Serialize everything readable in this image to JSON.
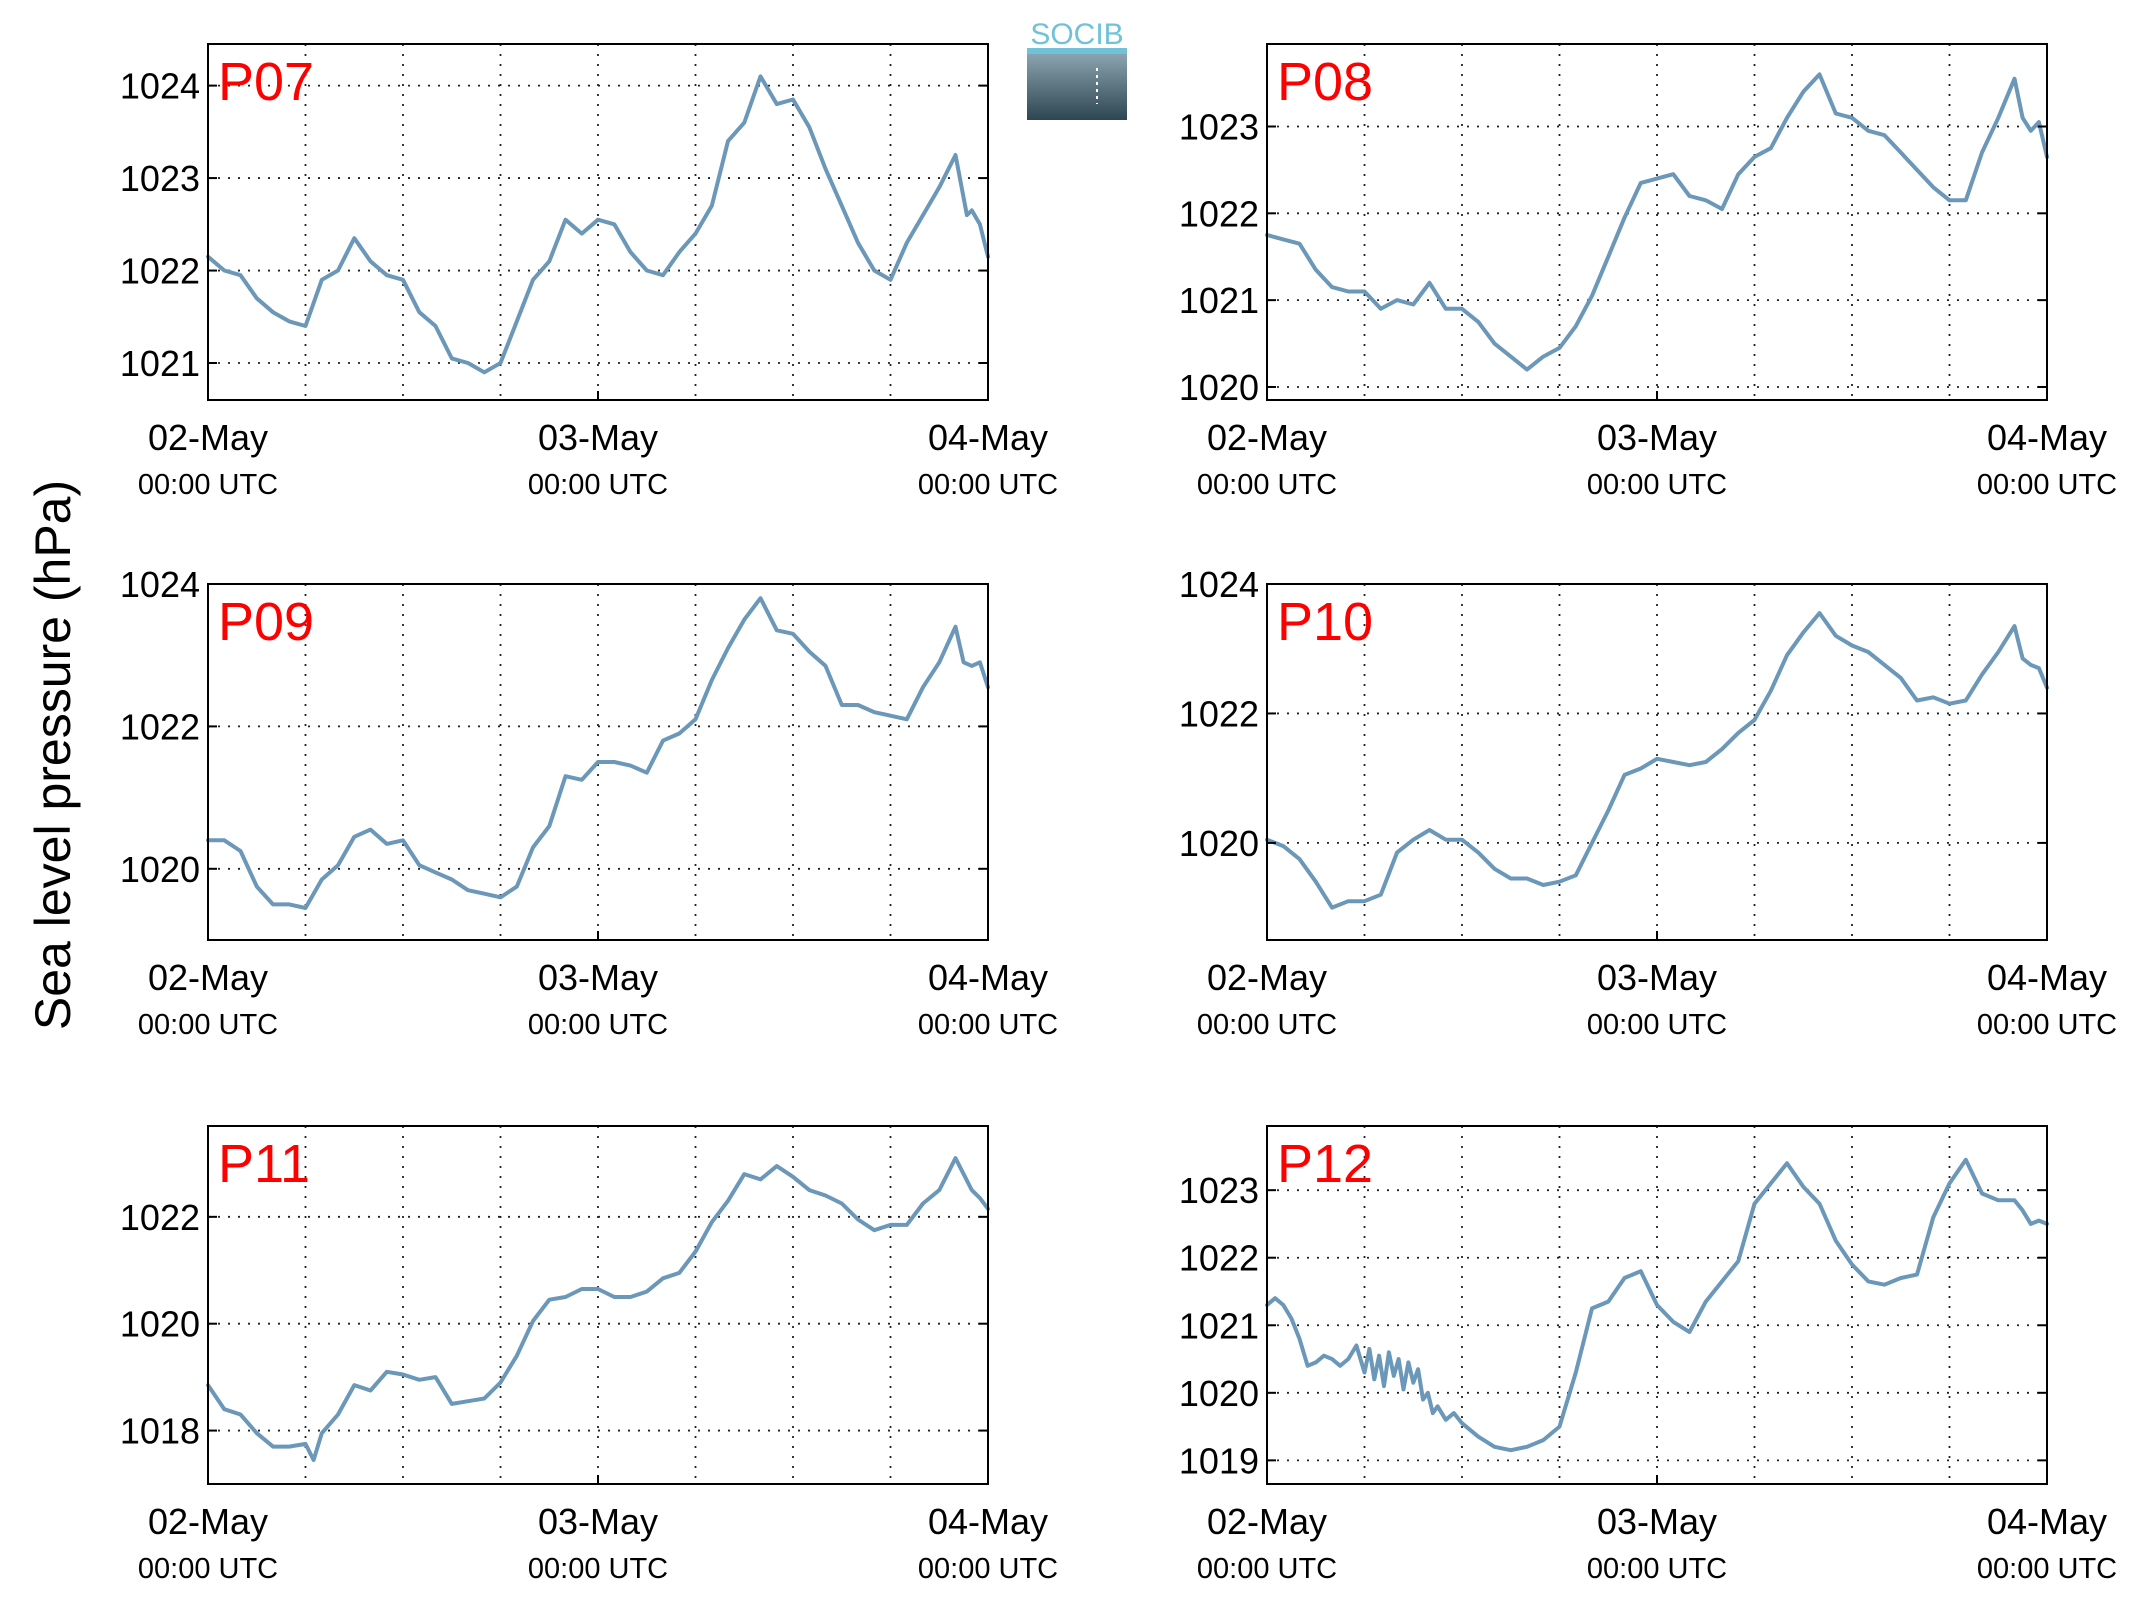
{
  "figure": {
    "ylabel": "Sea level pressure (hPa)",
    "logo_text": "SOCIB",
    "line_color": "#6b97b8",
    "panel_label_color": "#ff0000",
    "grid": true,
    "grid_style": "dotted"
  },
  "chart_data": [
    {
      "type": "line",
      "panel": "P07",
      "xlim": [
        0,
        48
      ],
      "ylim": [
        1020.6,
        1024.45
      ],
      "yticks": [
        1021,
        1022,
        1023,
        1024
      ],
      "xticks": [
        {
          "x": 0,
          "date": "02-May",
          "time": "00:00 UTC"
        },
        {
          "x": 24,
          "date": "03-May",
          "time": "00:00 UTC"
        },
        {
          "x": 48,
          "date": "04-May",
          "time": "00:00 UTC"
        }
      ],
      "x_minor_grid": [
        6,
        12,
        18,
        30,
        36,
        42
      ],
      "x": [
        0,
        1,
        2,
        3,
        4,
        5,
        6,
        7,
        8,
        9,
        10,
        11,
        12,
        13,
        14,
        15,
        16,
        17,
        18,
        19,
        20,
        21,
        22,
        23,
        24,
        25,
        26,
        27,
        28,
        29,
        30,
        31,
        32,
        33,
        34,
        35,
        36,
        37,
        38,
        39,
        40,
        41,
        42,
        43,
        44,
        45,
        46,
        46.7,
        47,
        47.5,
        48
      ],
      "values": [
        1022.15,
        1022.0,
        1021.95,
        1021.7,
        1021.55,
        1021.45,
        1021.4,
        1021.9,
        1022.0,
        1022.35,
        1022.1,
        1021.95,
        1021.9,
        1021.55,
        1021.4,
        1021.05,
        1021.0,
        1020.9,
        1021.0,
        1021.45,
        1021.9,
        1022.1,
        1022.55,
        1022.4,
        1022.55,
        1022.5,
        1022.2,
        1022.0,
        1021.95,
        1022.2,
        1022.4,
        1022.7,
        1023.4,
        1023.6,
        1024.1,
        1023.8,
        1023.85,
        1023.55,
        1023.1,
        1022.7,
        1022.3,
        1022.0,
        1021.9,
        1022.3,
        1022.6,
        1022.9,
        1023.25,
        1022.6,
        1022.65,
        1022.5,
        1022.15
      ],
      "xlabel": "",
      "ylabel": ""
    },
    {
      "type": "line",
      "panel": "P08",
      "xlim": [
        0,
        48
      ],
      "ylim": [
        1019.85,
        1023.95
      ],
      "yticks": [
        1020,
        1021,
        1022,
        1023
      ],
      "xticks": [
        {
          "x": 0,
          "date": "02-May",
          "time": "00:00 UTC"
        },
        {
          "x": 24,
          "date": "03-May",
          "time": "00:00 UTC"
        },
        {
          "x": 48,
          "date": "04-May",
          "time": "00:00 UTC"
        }
      ],
      "x_minor_grid": [
        6,
        12,
        18,
        30,
        36,
        42
      ],
      "x": [
        0,
        1,
        2,
        3,
        4,
        5,
        6,
        7,
        8,
        9,
        10,
        11,
        12,
        13,
        14,
        15,
        16,
        17,
        18,
        19,
        20,
        21,
        22,
        23,
        24,
        25,
        26,
        27,
        28,
        29,
        30,
        31,
        32,
        33,
        34,
        35,
        36,
        37,
        38,
        39,
        40,
        41,
        42,
        43,
        44,
        45,
        46,
        46.5,
        47,
        47.5,
        48
      ],
      "values": [
        1021.75,
        1021.7,
        1021.65,
        1021.35,
        1021.15,
        1021.1,
        1021.1,
        1020.9,
        1021.0,
        1020.95,
        1021.2,
        1020.9,
        1020.9,
        1020.75,
        1020.5,
        1020.35,
        1020.2,
        1020.35,
        1020.45,
        1020.7,
        1021.05,
        1021.5,
        1021.95,
        1022.35,
        1022.4,
        1022.45,
        1022.2,
        1022.15,
        1022.05,
        1022.45,
        1022.65,
        1022.75,
        1023.1,
        1023.4,
        1023.6,
        1023.15,
        1023.1,
        1022.95,
        1022.9,
        1022.7,
        1022.5,
        1022.3,
        1022.15,
        1022.15,
        1022.7,
        1023.1,
        1023.55,
        1023.1,
        1022.95,
        1023.05,
        1022.65
      ],
      "xlabel": "",
      "ylabel": ""
    },
    {
      "type": "line",
      "panel": "P09",
      "xlim": [
        0,
        48
      ],
      "ylim": [
        1019.0,
        1024.0
      ],
      "yticks": [
        1020,
        1022,
        1024
      ],
      "xticks": [
        {
          "x": 0,
          "date": "02-May",
          "time": "00:00 UTC"
        },
        {
          "x": 24,
          "date": "03-May",
          "time": "00:00 UTC"
        },
        {
          "x": 48,
          "date": "04-May",
          "time": "00:00 UTC"
        }
      ],
      "x_minor_grid": [
        6,
        12,
        18,
        30,
        36,
        42
      ],
      "x": [
        0,
        1,
        2,
        3,
        4,
        5,
        6,
        7,
        8,
        9,
        10,
        11,
        12,
        13,
        14,
        15,
        16,
        17,
        18,
        19,
        20,
        21,
        22,
        23,
        24,
        25,
        26,
        27,
        28,
        29,
        30,
        31,
        32,
        33,
        34,
        35,
        36,
        37,
        38,
        39,
        40,
        41,
        42,
        43,
        44,
        45,
        46,
        46.5,
        47,
        47.5,
        48
      ],
      "values": [
        1020.4,
        1020.4,
        1020.25,
        1019.75,
        1019.5,
        1019.5,
        1019.45,
        1019.85,
        1020.05,
        1020.45,
        1020.55,
        1020.35,
        1020.4,
        1020.05,
        1019.95,
        1019.85,
        1019.7,
        1019.65,
        1019.6,
        1019.75,
        1020.3,
        1020.6,
        1021.3,
        1021.25,
        1021.5,
        1021.5,
        1021.45,
        1021.35,
        1021.8,
        1021.9,
        1022.1,
        1022.65,
        1023.1,
        1023.5,
        1023.8,
        1023.35,
        1023.3,
        1023.05,
        1022.85,
        1022.3,
        1022.3,
        1022.2,
        1022.15,
        1022.1,
        1022.55,
        1022.9,
        1023.4,
        1022.9,
        1022.85,
        1022.9,
        1022.55
      ],
      "xlabel": "",
      "ylabel": ""
    },
    {
      "type": "line",
      "panel": "P10",
      "xlim": [
        0,
        48
      ],
      "ylim": [
        1018.5,
        1024.0
      ],
      "yticks": [
        1020,
        1022,
        1024
      ],
      "xticks": [
        {
          "x": 0,
          "date": "02-May",
          "time": "00:00 UTC"
        },
        {
          "x": 24,
          "date": "03-May",
          "time": "00:00 UTC"
        },
        {
          "x": 48,
          "date": "04-May",
          "time": "00:00 UTC"
        }
      ],
      "x_minor_grid": [
        6,
        12,
        18,
        30,
        36,
        42
      ],
      "x": [
        0,
        1,
        2,
        3,
        4,
        5,
        6,
        7,
        8,
        9,
        10,
        11,
        12,
        13,
        14,
        15,
        16,
        17,
        18,
        19,
        20,
        21,
        22,
        23,
        24,
        25,
        26,
        27,
        28,
        29,
        30,
        31,
        32,
        33,
        34,
        35,
        36,
        37,
        38,
        39,
        40,
        41,
        42,
        43,
        44,
        45,
        46,
        46.5,
        47,
        47.5,
        48
      ],
      "values": [
        1020.05,
        1019.95,
        1019.75,
        1019.4,
        1019.0,
        1019.1,
        1019.1,
        1019.2,
        1019.85,
        1020.05,
        1020.2,
        1020.05,
        1020.05,
        1019.85,
        1019.6,
        1019.45,
        1019.45,
        1019.35,
        1019.4,
        1019.5,
        1020.0,
        1020.5,
        1021.05,
        1021.15,
        1021.3,
        1021.25,
        1021.2,
        1021.25,
        1021.45,
        1021.7,
        1021.9,
        1022.35,
        1022.9,
        1023.25,
        1023.55,
        1023.2,
        1023.05,
        1022.95,
        1022.75,
        1022.55,
        1022.2,
        1022.25,
        1022.15,
        1022.2,
        1022.6,
        1022.95,
        1023.35,
        1022.85,
        1022.75,
        1022.7,
        1022.4
      ],
      "xlabel": "",
      "ylabel": ""
    },
    {
      "type": "line",
      "panel": "P11",
      "xlim": [
        0,
        48
      ],
      "ylim": [
        1017.0,
        1023.7
      ],
      "yticks": [
        1018,
        1020,
        1022
      ],
      "xticks": [
        {
          "x": 0,
          "date": "02-May",
          "time": "00:00 UTC"
        },
        {
          "x": 24,
          "date": "03-May",
          "time": "00:00 UTC"
        },
        {
          "x": 48,
          "date": "04-May",
          "time": "00:00 UTC"
        }
      ],
      "x_minor_grid": [
        6,
        12,
        18,
        30,
        36,
        42
      ],
      "x": [
        0,
        1,
        2,
        3,
        4,
        5,
        6,
        6.5,
        7,
        8,
        9,
        10,
        11,
        12,
        13,
        14,
        15,
        16,
        17,
        18,
        19,
        20,
        21,
        22,
        23,
        24,
        25,
        26,
        27,
        28,
        29,
        30,
        31,
        32,
        33,
        34,
        35,
        36,
        37,
        38,
        39,
        40,
        41,
        42,
        43,
        44,
        45,
        46,
        47,
        47.5,
        48
      ],
      "values": [
        1018.85,
        1018.4,
        1018.3,
        1017.95,
        1017.7,
        1017.7,
        1017.75,
        1017.45,
        1017.95,
        1018.3,
        1018.85,
        1018.75,
        1019.1,
        1019.05,
        1018.95,
        1019.0,
        1018.5,
        1018.55,
        1018.6,
        1018.9,
        1019.4,
        1020.05,
        1020.45,
        1020.5,
        1020.65,
        1020.65,
        1020.5,
        1020.5,
        1020.6,
        1020.85,
        1020.95,
        1021.35,
        1021.9,
        1022.3,
        1022.8,
        1022.7,
        1022.95,
        1022.75,
        1022.5,
        1022.4,
        1022.25,
        1021.95,
        1021.75,
        1021.85,
        1021.85,
        1022.25,
        1022.5,
        1023.1,
        1022.5,
        1022.35,
        1022.15
      ],
      "xlabel": "",
      "ylabel": ""
    },
    {
      "type": "line",
      "panel": "P12",
      "xlim": [
        0,
        48
      ],
      "ylim": [
        1018.65,
        1023.95
      ],
      "yticks": [
        1019,
        1020,
        1021,
        1022,
        1023
      ],
      "xticks": [
        {
          "x": 0,
          "date": "02-May",
          "time": "00:00 UTC"
        },
        {
          "x": 24,
          "date": "03-May",
          "time": "00:00 UTC"
        },
        {
          "x": 48,
          "date": "04-May",
          "time": "00:00 UTC"
        }
      ],
      "x_minor_grid": [
        6,
        12,
        18,
        30,
        36,
        42
      ],
      "x": [
        0,
        0.5,
        1,
        1.5,
        2,
        2.5,
        3,
        3.5,
        4,
        4.5,
        5,
        5.5,
        6,
        6.3,
        6.6,
        6.9,
        7.2,
        7.5,
        7.8,
        8.1,
        8.4,
        8.7,
        9.0,
        9.3,
        9.6,
        9.9,
        10.2,
        10.5,
        11,
        11.5,
        12,
        13,
        14,
        15,
        16,
        17,
        18,
        19,
        20,
        21,
        22,
        23,
        24,
        25,
        26,
        27,
        28,
        29,
        30,
        31,
        32,
        33,
        34,
        35,
        36,
        37,
        38,
        39,
        40,
        41,
        42,
        43,
        44,
        45,
        46,
        46.5,
        47,
        47.5,
        48
      ],
      "values": [
        1021.3,
        1021.4,
        1021.3,
        1021.1,
        1020.8,
        1020.4,
        1020.45,
        1020.55,
        1020.5,
        1020.4,
        1020.5,
        1020.7,
        1020.3,
        1020.65,
        1020.2,
        1020.55,
        1020.1,
        1020.6,
        1020.25,
        1020.5,
        1020.05,
        1020.45,
        1020.15,
        1020.35,
        1019.9,
        1020.0,
        1019.7,
        1019.8,
        1019.6,
        1019.7,
        1019.55,
        1019.35,
        1019.2,
        1019.15,
        1019.2,
        1019.3,
        1019.5,
        1020.3,
        1021.25,
        1021.35,
        1021.7,
        1021.8,
        1021.3,
        1021.05,
        1020.9,
        1021.35,
        1021.65,
        1021.95,
        1022.8,
        1023.1,
        1023.4,
        1023.05,
        1022.8,
        1022.25,
        1021.9,
        1021.65,
        1021.6,
        1021.7,
        1021.75,
        1022.6,
        1023.1,
        1023.45,
        1022.95,
        1022.85,
        1022.85,
        1022.7,
        1022.5,
        1022.55,
        1022.5
      ],
      "xlabel": "",
      "ylabel": ""
    }
  ]
}
